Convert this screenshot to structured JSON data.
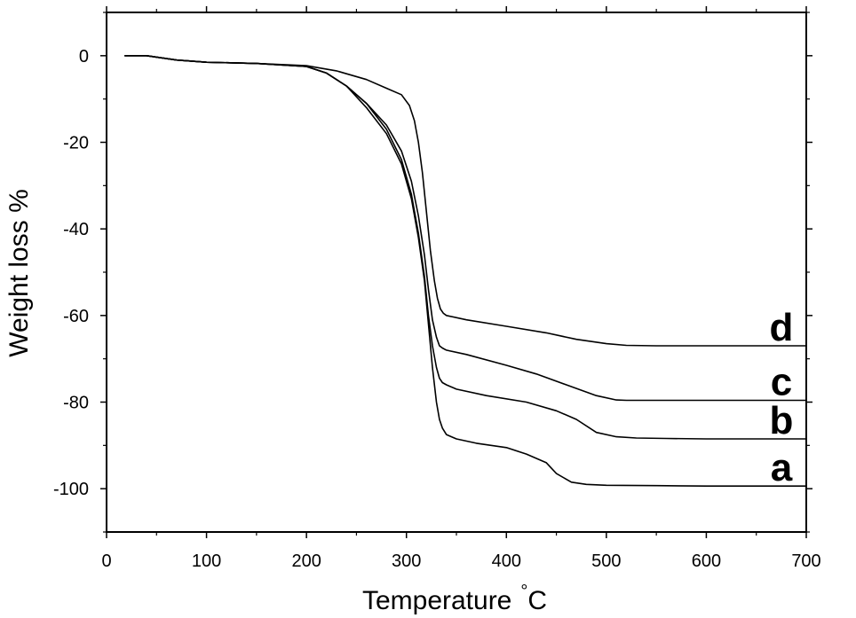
{
  "chart_data": {
    "type": "line",
    "title": "",
    "xlabel": "Temperature",
    "xlabel_unit": "°C",
    "ylabel": "Weight loss %",
    "xlim": [
      0,
      700
    ],
    "ylim": [
      -110,
      10
    ],
    "xticks": [
      0,
      100,
      200,
      300,
      400,
      500,
      600,
      700
    ],
    "yticks": [
      0,
      -20,
      -40,
      -60,
      -80,
      -100
    ],
    "grid": false,
    "legend": "none",
    "series": [
      {
        "name": "a",
        "x": [
          18,
          40,
          70,
          100,
          150,
          200,
          220,
          240,
          260,
          280,
          295,
          305,
          312,
          318,
          322,
          326,
          330,
          333,
          336,
          340,
          345,
          350,
          370,
          400,
          420,
          440,
          450,
          465,
          480,
          500,
          550,
          600,
          650,
          700
        ],
        "y": [
          0,
          0,
          -1,
          -1.5,
          -1.8,
          -2.5,
          -4,
          -7,
          -12,
          -18,
          -25,
          -33,
          -42,
          -52,
          -62,
          -72,
          -80,
          -84,
          -86,
          -87.5,
          -88,
          -88.5,
          -89.5,
          -90.5,
          -92,
          -94,
          -96.5,
          -98.5,
          -99,
          -99.2,
          -99.3,
          -99.4,
          -99.4,
          -99.4
        ]
      },
      {
        "name": "b",
        "x": [
          18,
          40,
          70,
          100,
          150,
          200,
          220,
          240,
          260,
          280,
          295,
          305,
          312,
          318,
          322,
          326,
          330,
          333,
          336,
          340,
          350,
          380,
          420,
          450,
          470,
          490,
          510,
          530,
          560,
          600,
          650,
          700
        ],
        "y": [
          0,
          0,
          -1,
          -1.5,
          -1.8,
          -2.5,
          -4,
          -7,
          -11,
          -17,
          -24,
          -32,
          -41,
          -51,
          -60,
          -67,
          -72,
          -74.5,
          -75.5,
          -76,
          -77,
          -78.5,
          -80,
          -82,
          -84,
          -87,
          -88,
          -88.3,
          -88.4,
          -88.5,
          -88.5,
          -88.5
        ]
      },
      {
        "name": "c",
        "x": [
          18,
          40,
          70,
          100,
          150,
          200,
          220,
          240,
          260,
          280,
          295,
          305,
          312,
          318,
          322,
          326,
          330,
          333,
          336,
          340,
          360,
          400,
          430,
          460,
          490,
          510,
          520,
          550,
          600,
          650,
          700
        ],
        "y": [
          0,
          0,
          -1,
          -1.5,
          -1.8,
          -2.5,
          -4,
          -7,
          -11,
          -16,
          -22,
          -29,
          -37,
          -46,
          -54,
          -61,
          -65,
          -67,
          -67.5,
          -68,
          -69,
          -71.5,
          -73.5,
          -76,
          -78.5,
          -79.5,
          -79.6,
          -79.6,
          -79.6,
          -79.6,
          -79.6
        ]
      },
      {
        "name": "d",
        "x": [
          18,
          40,
          70,
          100,
          150,
          200,
          230,
          260,
          280,
          295,
          303,
          308,
          312,
          316,
          320,
          324,
          328,
          331,
          334,
          337,
          340,
          360,
          400,
          440,
          470,
          500,
          520,
          550,
          600,
          650,
          700
        ],
        "y": [
          0,
          0,
          -1,
          -1.5,
          -1.8,
          -2.3,
          -3.5,
          -5.5,
          -7.5,
          -9,
          -11.5,
          -15,
          -20,
          -27,
          -36,
          -45,
          -52,
          -56,
          -58.5,
          -59.5,
          -60,
          -61,
          -62.5,
          -64,
          -65.5,
          -66.5,
          -66.9,
          -67,
          -67,
          -67,
          -67
        ]
      }
    ],
    "annotations": [
      {
        "text": "a",
        "series": "a"
      },
      {
        "text": "b",
        "series": "b"
      },
      {
        "text": "c",
        "series": "c"
      },
      {
        "text": "d",
        "series": "d"
      }
    ]
  }
}
